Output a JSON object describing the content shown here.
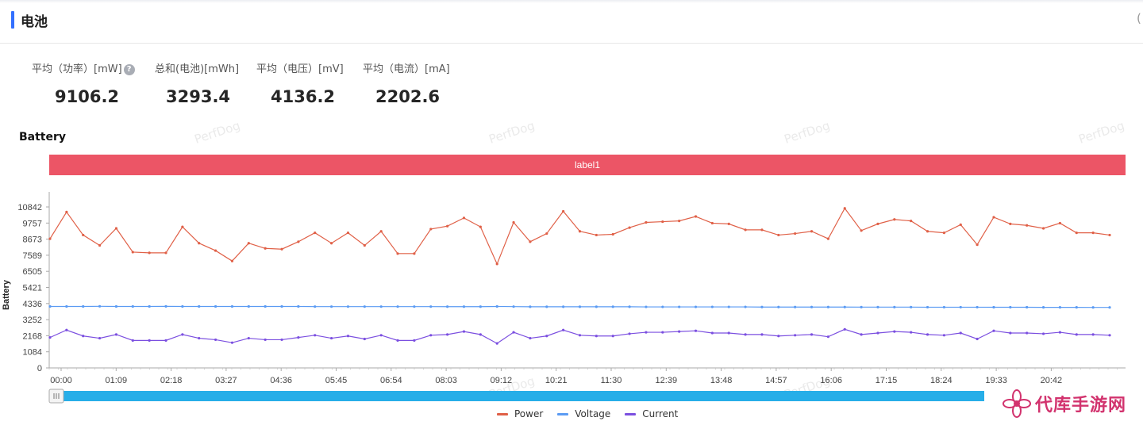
{
  "panel": {
    "title": "电池"
  },
  "stats": [
    {
      "label": "平均（功率）[mW]",
      "value": "9106.2",
      "help": "?"
    },
    {
      "label": "总和(电池)[mWh]",
      "value": "3293.4"
    },
    {
      "label": "平均（电压）[mV]",
      "value": "4136.2"
    },
    {
      "label": "平均（电流）[mA]",
      "value": "2202.6"
    }
  ],
  "watermark": "PerfDog",
  "logo_text": "代库手游网",
  "colors": {
    "accent": "#3370ff",
    "label_band": "#ec5566",
    "power": "#e06047",
    "voltage": "#5b9bf3",
    "current": "#7b4fe0",
    "slider": "#27aee8"
  },
  "chart_data": {
    "type": "line",
    "title": "Battery",
    "ylabel": "Battery",
    "band_label": "label1",
    "ylim": [
      0,
      10842
    ],
    "yticks": [
      0,
      1084,
      2168,
      3252,
      4336,
      5421,
      6505,
      7589,
      8673,
      9757,
      10842
    ],
    "xtick_labels": [
      "00:00",
      "01:09",
      "02:18",
      "03:27",
      "04:36",
      "05:45",
      "06:54",
      "08:03",
      "09:12",
      "10:21",
      "11:30",
      "12:39",
      "13:48",
      "14:57",
      "16:06",
      "17:15",
      "18:24",
      "19:33",
      "20:42"
    ],
    "series": [
      {
        "name": "Power",
        "color": "#e06047",
        "values": [
          8700,
          10500,
          8950,
          8250,
          9400,
          7800,
          7750,
          7750,
          9500,
          8400,
          7900,
          7200,
          8400,
          8050,
          8000,
          8500,
          9100,
          8400,
          9100,
          8250,
          9200,
          7700,
          7700,
          9350,
          9550,
          10100,
          9500,
          7000,
          9800,
          8500,
          9050,
          10550,
          9200,
          8950,
          9000,
          9450,
          9800,
          9850,
          9900,
          10200,
          9750,
          9700,
          9300,
          9300,
          8950,
          9050,
          9200,
          8700,
          10750,
          9250,
          9700,
          10000,
          9900,
          9200,
          9100,
          9650,
          8300,
          10150,
          9700,
          9600,
          9400,
          9750,
          9100,
          9100,
          8950
        ]
      },
      {
        "name": "Voltage",
        "color": "#5b9bf3",
        "values": [
          4140,
          4140,
          4140,
          4150,
          4140,
          4140,
          4140,
          4145,
          4140,
          4140,
          4140,
          4140,
          4140,
          4140,
          4140,
          4140,
          4130,
          4130,
          4130,
          4130,
          4130,
          4130,
          4130,
          4130,
          4125,
          4125,
          4125,
          4140,
          4130,
          4120,
          4120,
          4120,
          4120,
          4120,
          4120,
          4120,
          4110,
          4110,
          4110,
          4110,
          4110,
          4110,
          4110,
          4100,
          4100,
          4100,
          4100,
          4100,
          4100,
          4095,
          4095,
          4095,
          4095,
          4090,
          4090,
          4090,
          4090,
          4085,
          4085,
          4085,
          4080,
          4080,
          4080,
          4075,
          4075
        ]
      },
      {
        "name": "Current",
        "color": "#7b4fe0",
        "values": [
          2050,
          2550,
          2150,
          2000,
          2250,
          1850,
          1850,
          1850,
          2250,
          2000,
          1900,
          1700,
          2000,
          1900,
          1900,
          2050,
          2200,
          2000,
          2150,
          1950,
          2200,
          1850,
          1850,
          2200,
          2250,
          2450,
          2250,
          1650,
          2400,
          2000,
          2150,
          2550,
          2200,
          2150,
          2150,
          2300,
          2400,
          2400,
          2450,
          2500,
          2350,
          2350,
          2250,
          2250,
          2150,
          2200,
          2250,
          2100,
          2600,
          2250,
          2350,
          2450,
          2400,
          2250,
          2200,
          2350,
          1950,
          2500,
          2350,
          2350,
          2300,
          2400,
          2250,
          2250,
          2200
        ]
      }
    ],
    "grid": false,
    "legend": "bottom-center"
  }
}
